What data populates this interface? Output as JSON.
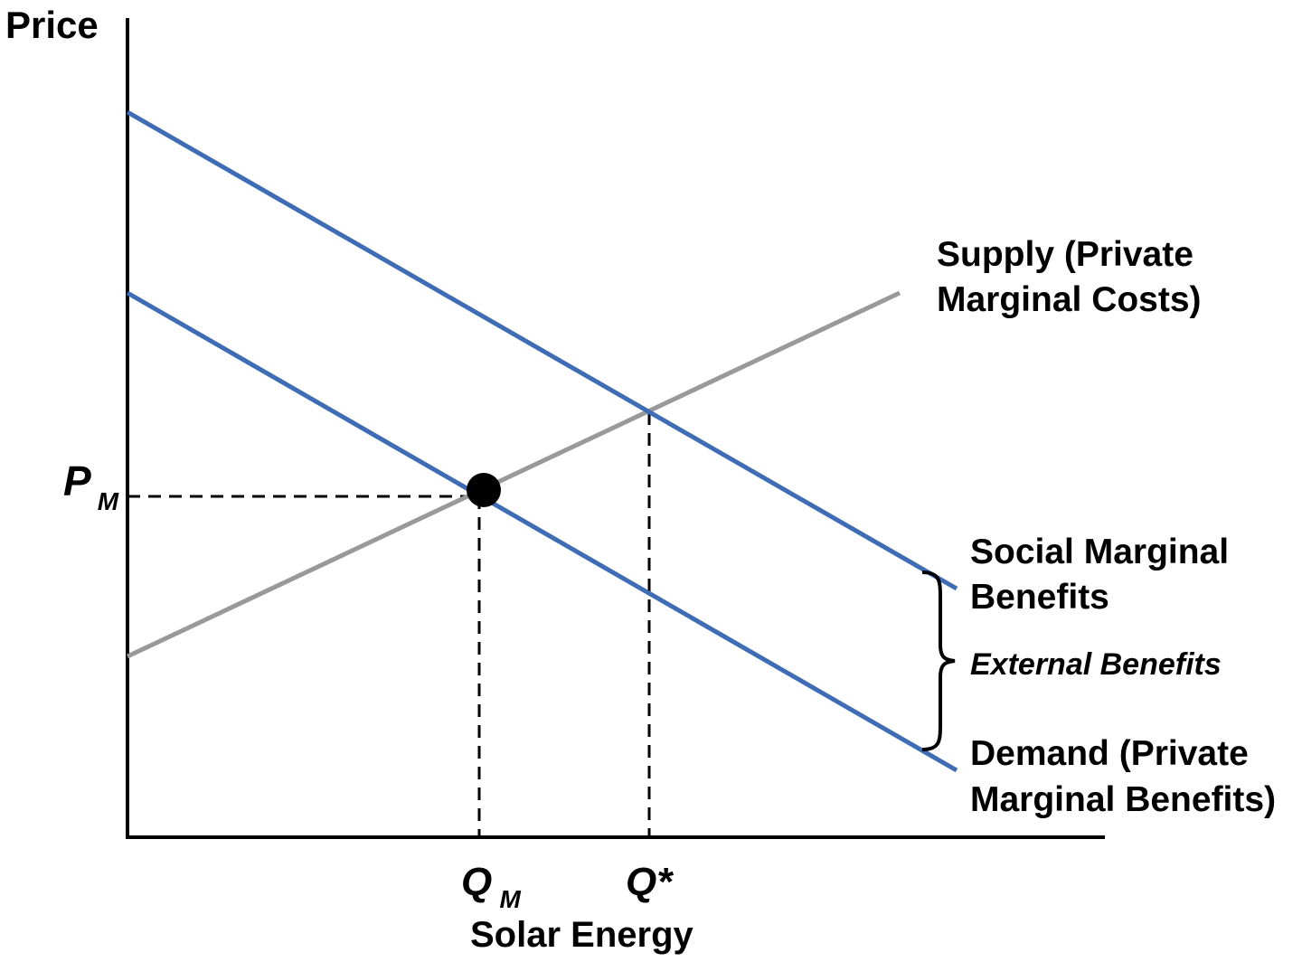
{
  "axes": {
    "y_label": "Price",
    "x_label": "Solar Energy"
  },
  "ticks": {
    "price_market": {
      "main": "P",
      "sub": "M"
    },
    "quantity_market": {
      "main": "Q",
      "sub": "M"
    },
    "quantity_optimal": "Q*"
  },
  "curves": {
    "supply": {
      "label_line1": "Supply (Private",
      "label_line2": "Marginal Costs)",
      "color": "#999999"
    },
    "social_benefits": {
      "label_line1": "Social Marginal",
      "label_line2": "Benefits",
      "color": "#3e6db5"
    },
    "demand": {
      "label_line1": "Demand (Private",
      "label_line2": "Marginal Benefits)",
      "color": "#3e6db5"
    }
  },
  "brace": {
    "label": "External Benefits"
  },
  "equilibrium_point": {
    "color": "#000000"
  }
}
